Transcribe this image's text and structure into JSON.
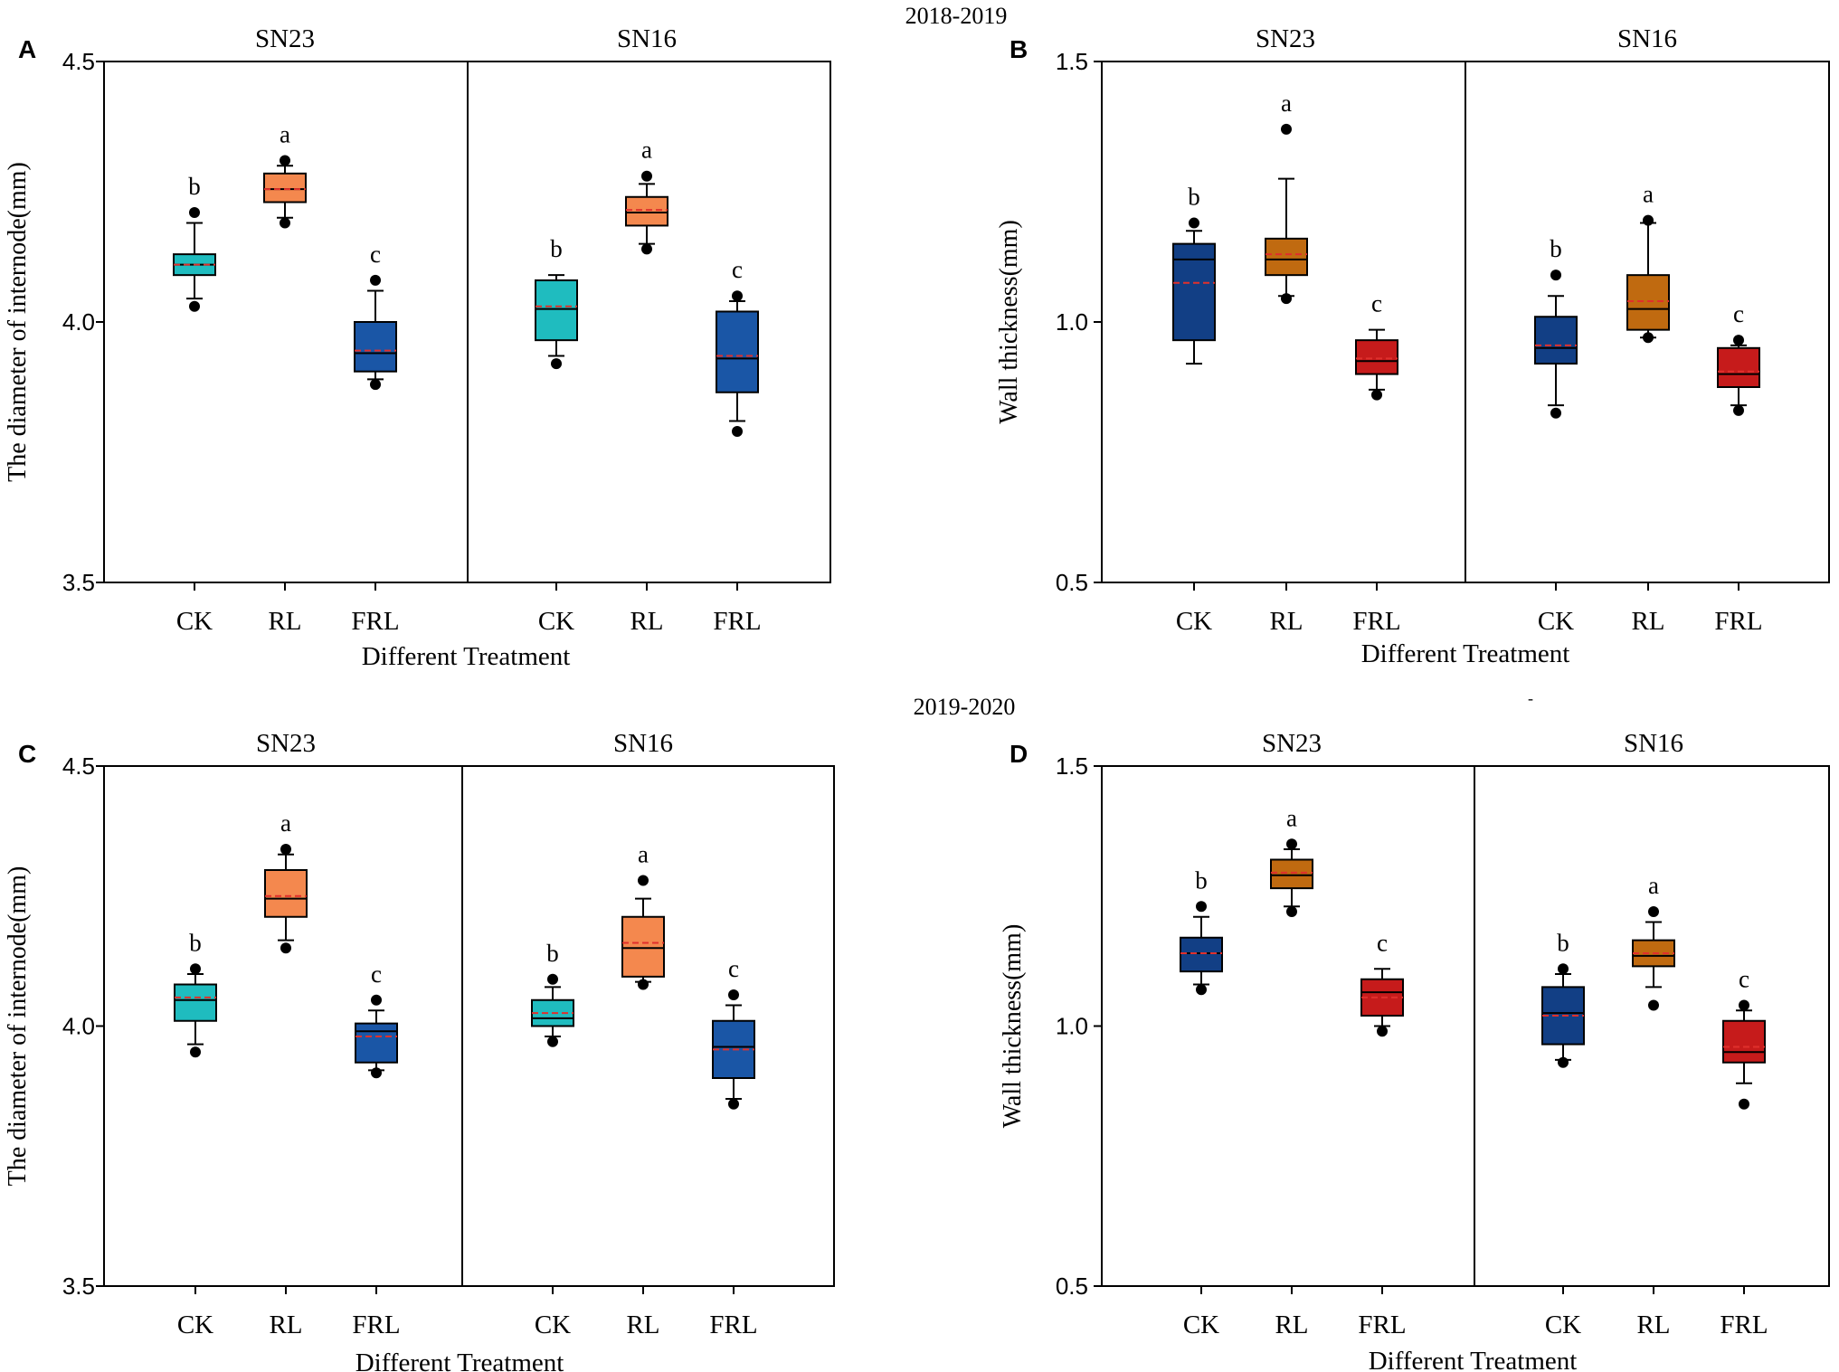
{
  "figure": {
    "year_labels": [
      "2018-2019",
      "2019-2020"
    ],
    "stray_mark": "-"
  },
  "colors": {
    "teal": "#1fbcbf",
    "orange": "#f4884e",
    "blue": "#1a56a6",
    "navy": "#123f85",
    "brown": "#c06a10",
    "red": "#c61b1b",
    "mean_line": "#e0302c",
    "axis": "#000000"
  },
  "chart_data": [
    {
      "type": "box",
      "panel_label": "A",
      "xlabel": "Different Treatment",
      "ylabel": "The diameter of internode(mm)",
      "ylim": [
        3.5,
        4.5
      ],
      "yticks": [
        "3.5",
        "4.0",
        "4.5"
      ],
      "groups": [
        {
          "name": "SN23",
          "boxes": [
            {
              "category": "CK",
              "color": "teal",
              "q1": 4.09,
              "median": 4.11,
              "mean": 4.11,
              "q3": 4.13,
              "whisker_low": 4.045,
              "whisker_high": 4.19,
              "outliers": [
                4.03,
                4.21
              ],
              "letter": "b"
            },
            {
              "category": "RL",
              "color": "orange",
              "q1": 4.23,
              "median": 4.255,
              "mean": 4.255,
              "q3": 4.285,
              "whisker_low": 4.2,
              "whisker_high": 4.3,
              "outliers": [
                4.19,
                4.31
              ],
              "letter": "a"
            },
            {
              "category": "FRL",
              "color": "blue",
              "q1": 3.905,
              "median": 3.94,
              "mean": 3.945,
              "q3": 4.0,
              "whisker_low": 3.89,
              "whisker_high": 4.06,
              "outliers": [
                3.88,
                4.08
              ],
              "letter": "c"
            }
          ]
        },
        {
          "name": "SN16",
          "boxes": [
            {
              "category": "CK",
              "color": "teal",
              "q1": 3.965,
              "median": 4.025,
              "mean": 4.03,
              "q3": 4.08,
              "whisker_low": 3.935,
              "whisker_high": 4.09,
              "outliers": [
                3.92
              ],
              "letter": "b"
            },
            {
              "category": "RL",
              "color": "orange",
              "q1": 4.185,
              "median": 4.21,
              "mean": 4.215,
              "q3": 4.24,
              "whisker_low": 4.15,
              "whisker_high": 4.265,
              "outliers": [
                4.14,
                4.28
              ],
              "letter": "a"
            },
            {
              "category": "FRL",
              "color": "blue",
              "q1": 3.865,
              "median": 3.93,
              "mean": 3.935,
              "q3": 4.02,
              "whisker_low": 3.81,
              "whisker_high": 4.04,
              "outliers": [
                3.79,
                4.05
              ],
              "letter": "c"
            }
          ]
        }
      ]
    },
    {
      "type": "box",
      "panel_label": "B",
      "xlabel": "Different Treatment",
      "ylabel": "Wall thickness(mm)",
      "ylim": [
        0.5,
        1.5
      ],
      "yticks": [
        "0.5",
        "1.0",
        "1.5"
      ],
      "groups": [
        {
          "name": "SN23",
          "boxes": [
            {
              "category": "CK",
              "color": "navy",
              "q1": 0.965,
              "median": 1.12,
              "mean": 1.075,
              "q3": 1.15,
              "whisker_low": 0.92,
              "whisker_high": 1.175,
              "outliers": [
                1.19
              ],
              "letter": "b"
            },
            {
              "category": "RL",
              "color": "brown",
              "q1": 1.09,
              "median": 1.12,
              "mean": 1.13,
              "q3": 1.16,
              "whisker_low": 1.05,
              "whisker_high": 1.275,
              "outliers": [
                1.045,
                1.37
              ],
              "letter": "a"
            },
            {
              "category": "FRL",
              "color": "red",
              "q1": 0.9,
              "median": 0.925,
              "mean": 0.93,
              "q3": 0.965,
              "whisker_low": 0.87,
              "whisker_high": 0.985,
              "outliers": [
                0.86
              ],
              "letter": "c"
            }
          ]
        },
        {
          "name": "SN16",
          "boxes": [
            {
              "category": "CK",
              "color": "navy",
              "q1": 0.92,
              "median": 0.95,
              "mean": 0.955,
              "q3": 1.01,
              "whisker_low": 0.84,
              "whisker_high": 1.05,
              "outliers": [
                0.825,
                1.09
              ],
              "letter": "b"
            },
            {
              "category": "RL",
              "color": "brown",
              "q1": 0.985,
              "median": 1.025,
              "mean": 1.04,
              "q3": 1.09,
              "whisker_low": 0.97,
              "whisker_high": 1.19,
              "outliers": [
                0.97,
                1.195
              ],
              "letter": "a"
            },
            {
              "category": "FRL",
              "color": "red",
              "q1": 0.875,
              "median": 0.9,
              "mean": 0.905,
              "q3": 0.95,
              "whisker_low": 0.84,
              "whisker_high": 0.955,
              "outliers": [
                0.83,
                0.965
              ],
              "letter": "c"
            }
          ]
        }
      ]
    },
    {
      "type": "box",
      "panel_label": "C",
      "xlabel": "Different Treatment",
      "ylabel": "The diameter of internode(mm)",
      "ylim": [
        3.5,
        4.5
      ],
      "yticks": [
        "3.5",
        "4.0",
        "4.5"
      ],
      "groups": [
        {
          "name": "SN23",
          "boxes": [
            {
              "category": "CK",
              "color": "teal",
              "q1": 4.01,
              "median": 4.05,
              "mean": 4.055,
              "q3": 4.08,
              "whisker_low": 3.965,
              "whisker_high": 4.1,
              "outliers": [
                3.95,
                4.11
              ],
              "letter": "b"
            },
            {
              "category": "RL",
              "color": "orange",
              "q1": 4.21,
              "median": 4.245,
              "mean": 4.25,
              "q3": 4.3,
              "whisker_low": 4.165,
              "whisker_high": 4.33,
              "outliers": [
                4.15,
                4.34
              ],
              "letter": "a"
            },
            {
              "category": "FRL",
              "color": "blue",
              "q1": 3.93,
              "median": 3.99,
              "mean": 3.98,
              "q3": 4.005,
              "whisker_low": 3.915,
              "whisker_high": 4.03,
              "outliers": [
                3.91,
                4.05
              ],
              "letter": "c"
            }
          ]
        },
        {
          "name": "SN16",
          "boxes": [
            {
              "category": "CK",
              "color": "teal",
              "q1": 4.0,
              "median": 4.015,
              "mean": 4.025,
              "q3": 4.05,
              "whisker_low": 3.98,
              "whisker_high": 4.075,
              "outliers": [
                3.97,
                4.09
              ],
              "letter": "b"
            },
            {
              "category": "RL",
              "color": "orange",
              "q1": 4.095,
              "median": 4.15,
              "mean": 4.16,
              "q3": 4.21,
              "whisker_low": 4.085,
              "whisker_high": 4.245,
              "outliers": [
                4.08,
                4.28
              ],
              "letter": "a"
            },
            {
              "category": "FRL",
              "color": "blue",
              "q1": 3.9,
              "median": 3.96,
              "mean": 3.955,
              "q3": 4.01,
              "whisker_low": 3.86,
              "whisker_high": 4.04,
              "outliers": [
                3.85,
                4.06
              ],
              "letter": "c"
            }
          ]
        }
      ]
    },
    {
      "type": "box",
      "panel_label": "D",
      "xlabel": "Different Treatment",
      "ylabel": "Wall thickness(mm)",
      "ylim": [
        0.5,
        1.5
      ],
      "yticks": [
        "0.5",
        "1.0",
        "1.5"
      ],
      "groups": [
        {
          "name": "SN23",
          "boxes": [
            {
              "category": "CK",
              "color": "navy",
              "q1": 1.105,
              "median": 1.14,
              "mean": 1.14,
              "q3": 1.17,
              "whisker_low": 1.08,
              "whisker_high": 1.21,
              "outliers": [
                1.07,
                1.23
              ],
              "letter": "b"
            },
            {
              "category": "RL",
              "color": "brown",
              "q1": 1.265,
              "median": 1.29,
              "mean": 1.295,
              "q3": 1.32,
              "whisker_low": 1.23,
              "whisker_high": 1.34,
              "outliers": [
                1.22,
                1.35
              ],
              "letter": "a"
            },
            {
              "category": "FRL",
              "color": "red",
              "q1": 1.02,
              "median": 1.065,
              "mean": 1.055,
              "q3": 1.09,
              "whisker_low": 1.0,
              "whisker_high": 1.11,
              "outliers": [
                0.99
              ],
              "letter": "c"
            }
          ]
        },
        {
          "name": "SN16",
          "boxes": [
            {
              "category": "CK",
              "color": "navy",
              "q1": 0.965,
              "median": 1.025,
              "mean": 1.02,
              "q3": 1.075,
              "whisker_low": 0.935,
              "whisker_high": 1.1,
              "outliers": [
                0.93,
                1.11
              ],
              "letter": "b"
            },
            {
              "category": "RL",
              "color": "brown",
              "q1": 1.115,
              "median": 1.135,
              "mean": 1.14,
              "q3": 1.165,
              "whisker_low": 1.075,
              "whisker_high": 1.2,
              "outliers": [
                1.04,
                1.22
              ],
              "letter": "a"
            },
            {
              "category": "FRL",
              "color": "red",
              "q1": 0.93,
              "median": 0.95,
              "mean": 0.96,
              "q3": 1.01,
              "whisker_low": 0.89,
              "whisker_high": 1.03,
              "outliers": [
                0.85,
                1.04
              ],
              "letter": "c"
            }
          ]
        }
      ]
    }
  ]
}
